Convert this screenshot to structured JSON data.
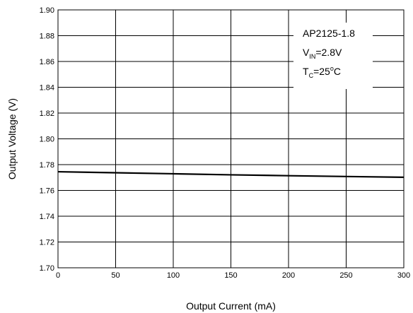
{
  "chart_data": {
    "type": "line",
    "xlabel": "Output Current (mA)",
    "ylabel": "Output Voltage (V)",
    "xlim": [
      0,
      300
    ],
    "ylim": [
      1.7,
      1.9
    ],
    "x_ticks": [
      "0",
      "50",
      "100",
      "150",
      "200",
      "250",
      "300"
    ],
    "y_ticks": [
      "1.70",
      "1.72",
      "1.74",
      "1.76",
      "1.78",
      "1.80",
      "1.82",
      "1.84",
      "1.86",
      "1.88",
      "1.90"
    ],
    "grid": true,
    "series": [
      {
        "x": [
          0,
          50,
          100,
          150,
          200,
          250,
          300
        ],
        "y": [
          1.7745,
          1.7737,
          1.7729,
          1.7721,
          1.7714,
          1.7708,
          1.7702
        ]
      }
    ],
    "annotation": {
      "line1": "AP2125-1.8",
      "line2_main": "V",
      "line2_sub": "IN",
      "line2_rest": "=2.8V",
      "line3_main": "T",
      "line3_sub": "C",
      "line3_mid": "=25",
      "line3_sup": "o",
      "line3_rest": "C"
    },
    "colors": {
      "line": "#000000",
      "grid": "#000000",
      "background": "#ffffff"
    }
  }
}
